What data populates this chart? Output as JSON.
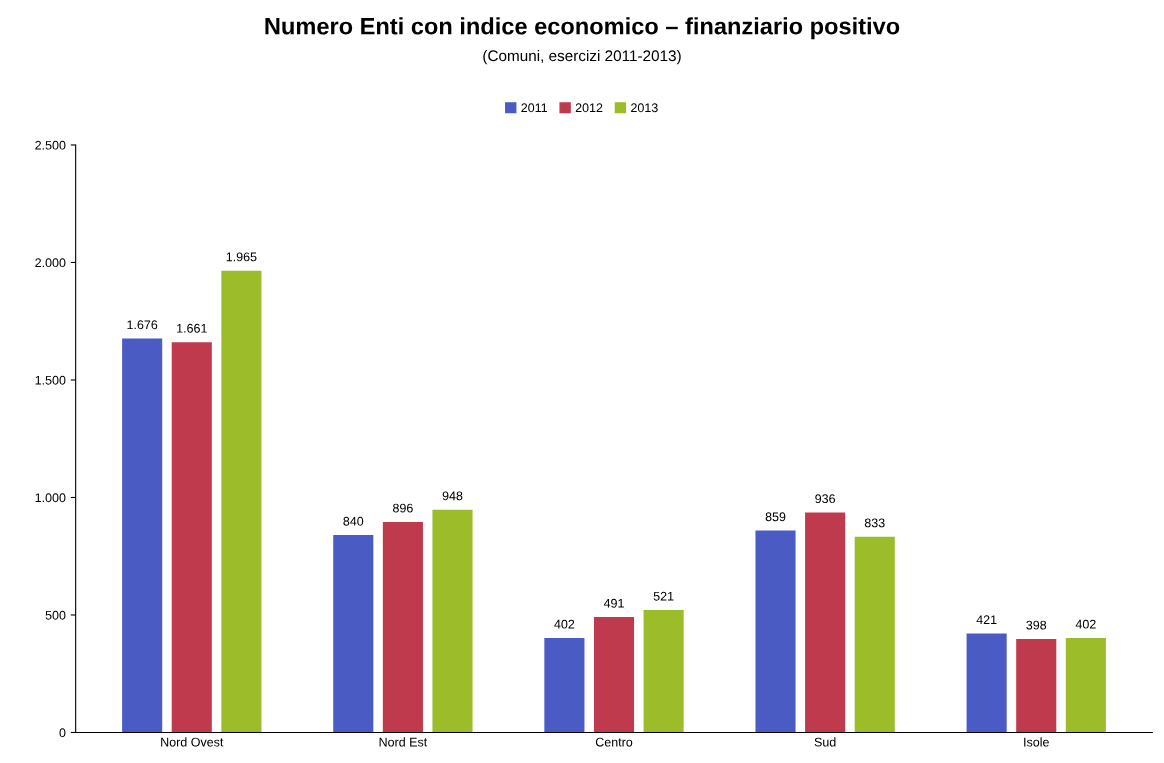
{
  "chart_data": {
    "type": "bar",
    "title": "Numero Enti con indice economico – finanziario positivo",
    "subtitle": "(Comuni, esercizi 2011-2013)",
    "categories": [
      "Nord Ovest",
      "Nord Est",
      "Centro",
      "Sud",
      "Isole"
    ],
    "series": [
      {
        "name": "2011",
        "color": "#4a5cc4",
        "values": [
          1676,
          840,
          402,
          859,
          421
        ],
        "value_labels": [
          "1.676",
          "840",
          "402",
          "859",
          "421"
        ]
      },
      {
        "name": "2012",
        "color": "#c03a4e",
        "values": [
          1661,
          896,
          491,
          936,
          398
        ],
        "value_labels": [
          "1.661",
          "896",
          "491",
          "936",
          "398"
        ]
      },
      {
        "name": "2013",
        "color": "#9cbc2a",
        "values": [
          1965,
          948,
          521,
          833,
          402
        ],
        "value_labels": [
          "1.965",
          "948",
          "521",
          "833",
          "402"
        ]
      }
    ],
    "ylim": [
      0,
      2500
    ],
    "yticks": [
      0,
      500,
      {
        "value": 1000,
        "label": "1.000"
      },
      {
        "value": 1500,
        "label": "1.500"
      },
      {
        "value": 2000,
        "label": "2.000"
      },
      {
        "value": 2500,
        "label": "2.500"
      }
    ],
    "grid": false,
    "legend": "top"
  }
}
